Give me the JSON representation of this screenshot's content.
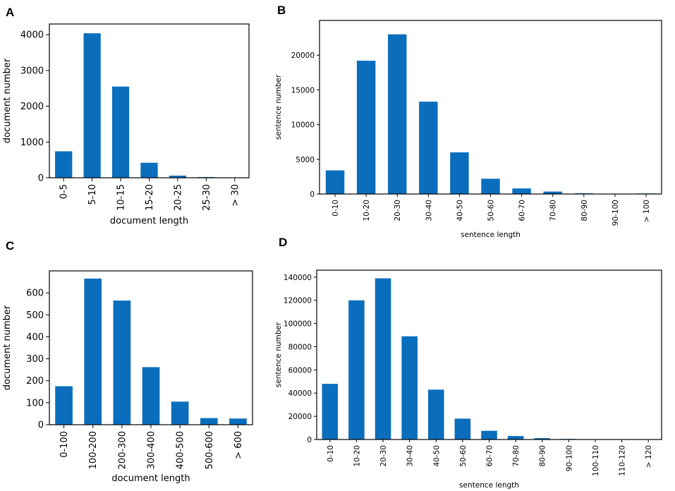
{
  "chart_data": [
    {
      "panel": "A",
      "type": "bar",
      "categories": [
        "0-5",
        "5-10",
        "10-15",
        "15-20",
        "20-25",
        "25-30",
        "> 30"
      ],
      "values": [
        740,
        4040,
        2550,
        420,
        60,
        20,
        5
      ],
      "ylim": [
        0,
        4300
      ],
      "yticks": [
        0,
        1000,
        2000,
        3000,
        4000
      ],
      "xlabel": "document length",
      "ylabel": "document number",
      "color": "#0a6ebd"
    },
    {
      "panel": "B",
      "type": "bar",
      "categories": [
        "0-10",
        "10-20",
        "20-30",
        "30-40",
        "40-50",
        "50-60",
        "60-70",
        "70-80",
        "80-90",
        "90-100",
        "> 100"
      ],
      "values": [
        3400,
        19200,
        23000,
        13300,
        6000,
        2200,
        800,
        350,
        100,
        30,
        80
      ],
      "ylim": [
        0,
        25000
      ],
      "yticks": [
        0,
        5000,
        10000,
        15000,
        20000
      ],
      "xlabel": "sentence length",
      "ylabel": "sentence number",
      "color": "#0a6ebd"
    },
    {
      "panel": "C",
      "type": "bar",
      "categories": [
        "0-100",
        "100-200",
        "200-300",
        "300-400",
        "400-500",
        "500-600",
        "> 600"
      ],
      "values": [
        175,
        665,
        565,
        262,
        105,
        30,
        28
      ],
      "ylim": [
        0,
        700
      ],
      "yticks": [
        0,
        100,
        200,
        300,
        400,
        500,
        600
      ],
      "xlabel": "document length",
      "ylabel": "document number",
      "color": "#0a6ebd"
    },
    {
      "panel": "D",
      "type": "bar",
      "categories": [
        "0-10",
        "10-20",
        "20-30",
        "30-40",
        "40-50",
        "50-60",
        "60-70",
        "70-80",
        "80-90",
        "90-100",
        "100-110",
        "110-120",
        "> 120"
      ],
      "values": [
        48000,
        120000,
        139000,
        89000,
        43000,
        18000,
        7500,
        3000,
        1200,
        500,
        200,
        100,
        300
      ],
      "ylim": [
        0,
        146000
      ],
      "yticks": [
        0,
        20000,
        40000,
        60000,
        80000,
        100000,
        120000,
        140000
      ],
      "xlabel": "sentence length",
      "ylabel": "sentence number",
      "color": "#0a6ebd"
    }
  ]
}
